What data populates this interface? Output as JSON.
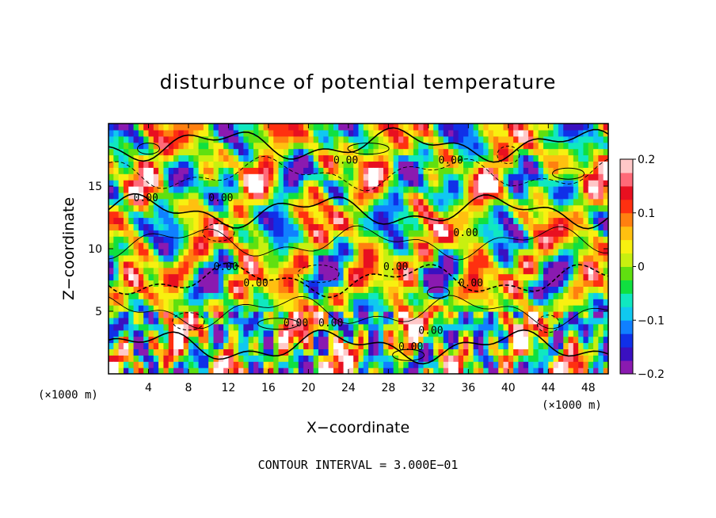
{
  "chart_data": {
    "type": "heatmap",
    "title": "disturbunce of potential temperature",
    "xlabel": "X−coordinate",
    "ylabel": "Z−coordinate",
    "x_unit": "(×1000 m)",
    "x_unit_right": "(×1000 m)",
    "xlim": [
      0,
      50
    ],
    "ylim": [
      0,
      20
    ],
    "x_ticks": [
      4,
      8,
      12,
      16,
      20,
      24,
      28,
      32,
      36,
      40,
      44,
      48
    ],
    "x_tick_labels": [
      "4",
      "8",
      "12",
      "16",
      "20",
      "24",
      "28",
      "32",
      "36",
      "40",
      "44",
      "48"
    ],
    "y_ticks": [
      5,
      10,
      15
    ],
    "y_tick_labels": [
      "5",
      "10",
      "15"
    ],
    "colorbar": {
      "min": -0.2,
      "max": 0.2,
      "ticks": [
        0.2,
        0.1,
        0,
        -0.1,
        -0.2
      ],
      "tick_labels": [
        "0.2",
        "0.1",
        "0",
        "−0.1",
        "−0.2"
      ],
      "colors": [
        "#8a1ab0",
        "#3a10c0",
        "#1030e8",
        "#1080ff",
        "#10c8f0",
        "#10e8c0",
        "#10e040",
        "#60e010",
        "#c8f010",
        "#f8f010",
        "#ffc010",
        "#ff8010",
        "#ff3010",
        "#e81020",
        "#ff6a78",
        "#ffc8c8"
      ]
    },
    "contour_interval_text": "CONTOUR INTERVAL = 3.000E−01",
    "contour_labels": [
      "0.00",
      "0.00",
      "0.00",
      "0.00",
      "0.00",
      "0.00",
      "0.00",
      "0.00",
      "0.00",
      "0.00",
      "0.00",
      "0.00",
      "0.00"
    ]
  }
}
